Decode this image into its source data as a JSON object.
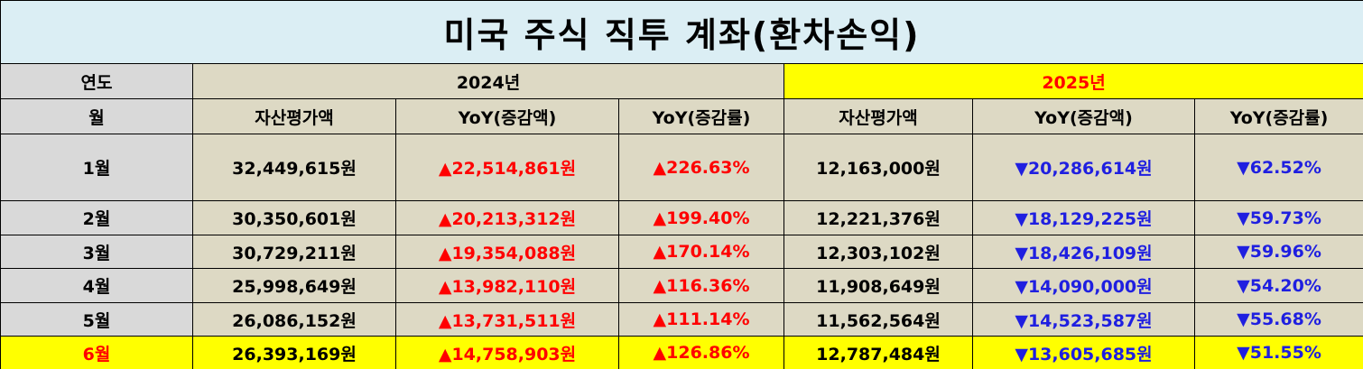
{
  "title": "미국 주식 직투 계좌(환차손익)",
  "header": {
    "year_label": "연도",
    "years": [
      "2024년",
      "2025년"
    ],
    "month_label": "월",
    "columns": [
      "자산평가액",
      "YoY(증감액)",
      "YoY(증감률)",
      "자산평가액",
      "YoY(증감액)",
      "YoY(증감률)"
    ]
  },
  "table": {
    "rows": [
      [
        "1월",
        "32,449,615원",
        "▲22,514,861원",
        "▲226.63%",
        "12,163,000원",
        "▼20,286,614원",
        "▼62.52%"
      ],
      [
        "2월",
        "30,350,601원",
        "▲20,213,312원",
        "▲199.40%",
        "12,221,376원",
        "▼18,129,225원",
        "▼59.73%"
      ],
      [
        "3월",
        "30,729,211원",
        "▲19,354,088원",
        "▲170.14%",
        "12,303,102원",
        "▼18,426,109원",
        "▼59.96%"
      ],
      [
        "4월",
        "25,998,649원",
        "▲13,982,110원",
        "▲116.36%",
        "11,908,649원",
        "▼14,090,000원",
        "▼54.20%"
      ],
      [
        "5월",
        "26,086,152원",
        "▲13,731,511원",
        "▲111.14%",
        "11,562,564원",
        "▼14,523,587원",
        "▼55.68%"
      ],
      [
        "6월",
        "26,393,169원",
        "▲14,758,903원",
        "▲126.86%",
        "12,787,484원",
        "▼13,605,685원",
        "▼51.55%"
      ]
    ]
  }
}
